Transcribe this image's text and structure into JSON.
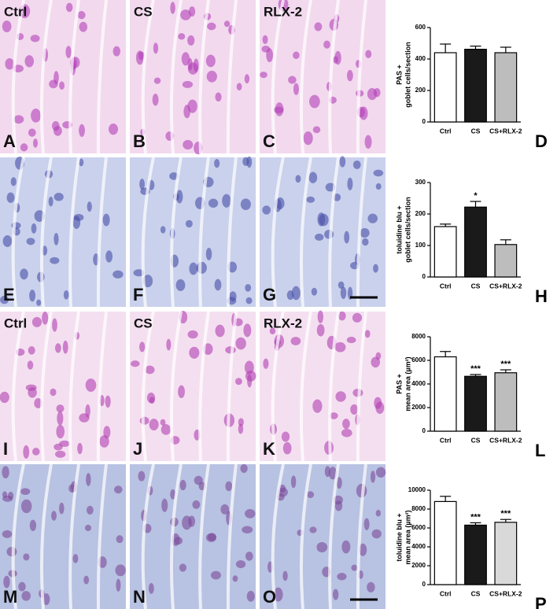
{
  "panels": [
    {
      "letter": "A",
      "label": "Ctrl"
    },
    {
      "letter": "B",
      "label": "CS"
    },
    {
      "letter": "C",
      "label": "RLX-2"
    },
    {
      "letter": "E"
    },
    {
      "letter": "F"
    },
    {
      "letter": "G"
    },
    {
      "letter": "I",
      "label": "Ctrl"
    },
    {
      "letter": "J",
      "label": "CS"
    },
    {
      "letter": "K",
      "label": "RLX-2"
    },
    {
      "letter": "M"
    },
    {
      "letter": "N"
    },
    {
      "letter": "O"
    }
  ],
  "chart_data": [
    {
      "type": "bar",
      "panel": "D",
      "ylabel": [
        "PAS +",
        "goblet cells/section"
      ],
      "categories": [
        "Ctrl",
        "CS",
        "CS+RLX-2"
      ],
      "values": [
        440,
        462,
        440
      ],
      "errors": [
        55,
        20,
        35
      ],
      "colors": [
        "#ffffff",
        "#1a1a1a",
        "#bdbdbd"
      ],
      "ylim": [
        0,
        600
      ],
      "yticks": [
        0,
        200,
        400,
        600
      ]
    },
    {
      "type": "bar",
      "panel": "H",
      "ylabel": [
        "toluidine blu +",
        "goblet cells/section"
      ],
      "categories": [
        "Ctrl",
        "CS",
        "CS+RLX-2"
      ],
      "values": [
        160,
        222,
        103
      ],
      "errors": [
        8,
        18,
        15
      ],
      "colors": [
        "#ffffff",
        "#1a1a1a",
        "#bdbdbd"
      ],
      "ylim": [
        0,
        300
      ],
      "yticks": [
        0,
        100,
        200,
        300
      ],
      "annotations": [
        {
          "text": "*",
          "x": "CS"
        }
      ]
    },
    {
      "type": "bar",
      "panel": "L",
      "ylabel": [
        "PAS +",
        "mean area (µm²)"
      ],
      "categories": [
        "Ctrl",
        "CS",
        "CS+RLX-2"
      ],
      "values": [
        6300,
        4650,
        4950
      ],
      "errors": [
        450,
        150,
        250
      ],
      "colors": [
        "#ffffff",
        "#1a1a1a",
        "#bdbdbd"
      ],
      "ylim": [
        0,
        8000
      ],
      "yticks": [
        0,
        2000,
        4000,
        6000,
        8000
      ],
      "annotations": [
        {
          "text": "***",
          "x": "CS"
        },
        {
          "text": "***",
          "x": "CS+RLX-2"
        }
      ]
    },
    {
      "type": "bar",
      "panel": "P",
      "ylabel": [
        "toluidine blu +",
        "mean area (µm²)"
      ],
      "categories": [
        "Ctrl",
        "CS",
        "CS+RLX-2"
      ],
      "values": [
        8800,
        6300,
        6600
      ],
      "errors": [
        550,
        250,
        300
      ],
      "colors": [
        "#ffffff",
        "#1a1a1a",
        "#d9d9d9"
      ],
      "ylim": [
        0,
        10000
      ],
      "yticks": [
        0,
        2000,
        4000,
        6000,
        8000,
        10000
      ],
      "annotations": [
        {
          "text": "***",
          "x": "CS"
        },
        {
          "text": "***",
          "x": "CS+RLX-2"
        }
      ]
    }
  ]
}
